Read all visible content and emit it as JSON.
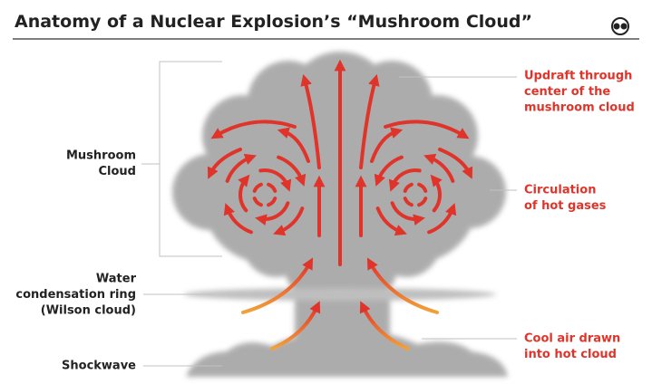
{
  "header": {
    "title": "Anatomy of a Nuclear Explosion’s “Mushroom Cloud”"
  },
  "labels": {
    "left": [
      {
        "lines": [
          "Mushroom",
          "Cloud"
        ]
      },
      {
        "lines": [
          "Water",
          "condensation ring",
          "(Wilson cloud)"
        ]
      },
      {
        "lines": [
          "Shockwave"
        ]
      }
    ],
    "right": [
      {
        "lines": [
          "Updraft through",
          "center of the",
          "mushroom cloud"
        ]
      },
      {
        "lines": [
          "Circulation",
          "of hot gases"
        ]
      },
      {
        "lines": [
          "Cool air drawn",
          "into hot cloud"
        ]
      }
    ]
  }
}
